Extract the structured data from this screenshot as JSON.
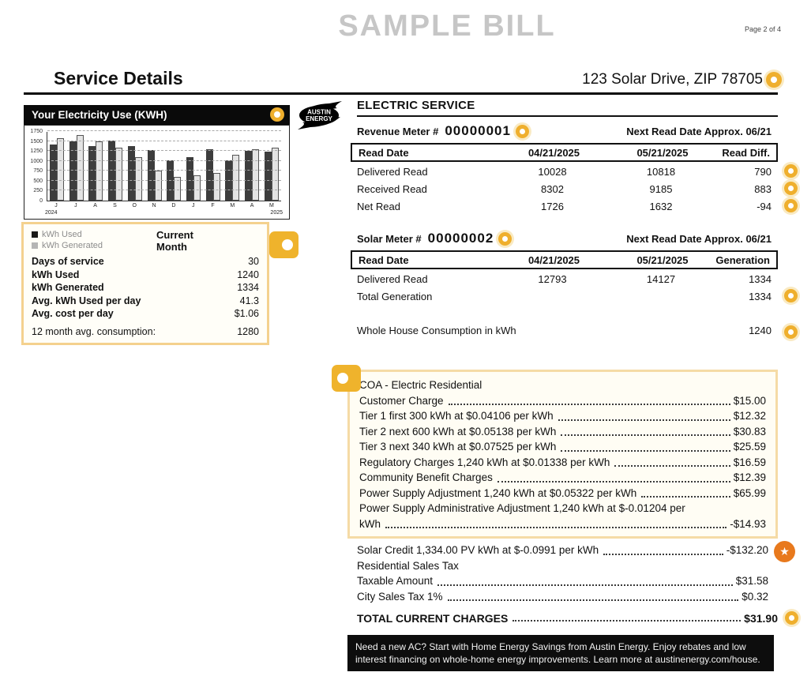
{
  "page": {
    "watermark": "SAMPLE BILL",
    "page_indicator": "Page 2 of 4",
    "section_title": "Service Details",
    "service_address": "123 Solar Drive, ZIP 78705"
  },
  "accents": {
    "marker_gold": "#EFAF2D",
    "star_orange": "#E8791D",
    "highlight_border": "#F5DBA6"
  },
  "chart_data": {
    "type": "bar",
    "title": "Your Electricity Use (KWH)",
    "categories": [
      "J",
      "J",
      "A",
      "S",
      "O",
      "N",
      "D",
      "J",
      "F",
      "M",
      "A",
      "M"
    ],
    "x_start_year": "2024",
    "x_end_year": "2025",
    "series": [
      {
        "name": "kWh Used",
        "color": "#3d3d3d",
        "values": [
          1420,
          1500,
          1380,
          1520,
          1370,
          1280,
          1020,
          1090,
          1300,
          1010,
          1250,
          1240
        ]
      },
      {
        "name": "kWh Generated",
        "color": "#e4e4e4",
        "values": [
          1570,
          1650,
          1500,
          1340,
          1090,
          760,
          590,
          630,
          690,
          1160,
          1290,
          1334
        ]
      }
    ],
    "ylim": [
      0,
      1750
    ],
    "yticks": [
      0,
      250,
      500,
      750,
      1000,
      1250,
      1500,
      1750
    ],
    "grid": true,
    "legend_position": "below-left"
  },
  "legend": {
    "used": "kWh Used",
    "generated": "kWh Generated",
    "current_month": "Current Month"
  },
  "usage_stats": {
    "rows": [
      {
        "label": "Days of service",
        "value": "30"
      },
      {
        "label": "kWh Used",
        "value": "1240"
      },
      {
        "label": "kWh Generated",
        "value": "1334"
      },
      {
        "label": "Avg. kWh Used per day",
        "value": "41.3"
      },
      {
        "label": "Avg. cost per day",
        "value": "$1.06"
      }
    ],
    "footer": {
      "label": "12 month avg. consumption:",
      "value": "1280"
    }
  },
  "electric_service": {
    "heading": "ELECTRIC SERVICE",
    "revenue_meter": {
      "label": "Revenue Meter #",
      "number": "00000001",
      "next_read": "Next Read Date Approx. 06/21",
      "columns": [
        "Read Date",
        "04/21/2025",
        "05/21/2025",
        "Read Diff."
      ],
      "rows": [
        {
          "label": "Delivered Read",
          "c1": "10028",
          "c2": "10818",
          "c3": "790"
        },
        {
          "label": "Received Read",
          "c1": "8302",
          "c2": "9185",
          "c3": "883"
        },
        {
          "label": "Net Read",
          "c1": "1726",
          "c2": "1632",
          "c3": "-94"
        }
      ]
    },
    "solar_meter": {
      "label": "Solar Meter #",
      "number": "00000002",
      "next_read": "Next Read Date Approx. 06/21",
      "columns": [
        "Read Date",
        "04/21/2025",
        "05/21/2025",
        "Generation"
      ],
      "rows": [
        {
          "label": "Delivered Read",
          "c1": "12793",
          "c2": "14127",
          "c3": "1334"
        },
        {
          "label": "Total Generation",
          "c1": "",
          "c2": "",
          "c3": "1334"
        }
      ]
    },
    "whole_house": {
      "label": "Whole House Consumption in kWh",
      "value": "1240"
    }
  },
  "charges": {
    "box_rows": [
      {
        "label": "COA - Electric Residential",
        "amount": ""
      },
      {
        "label": "Customer Charge",
        "amount": "$15.00"
      },
      {
        "label": "Tier 1 first 300 kWh at $0.04106 per kWh",
        "amount": "$12.32"
      },
      {
        "label": "Tier 2 next 600 kWh at $0.05138 per kWh",
        "amount": "$30.83"
      },
      {
        "label": "Tier 3 next 340 kWh at $0.07525 per kWh",
        "amount": "$25.59"
      },
      {
        "label": "Regulatory Charges 1,240 kWh at $0.01338 per kWh",
        "amount": "$16.59"
      },
      {
        "label": "Community Benefit Charges",
        "amount": "$12.39"
      },
      {
        "label": "Power Supply Adjustment 1,240 kWh at $0.05322 per kWh",
        "amount": "$65.99"
      },
      {
        "label": "Power Supply Administrative Adjustment 1,240 kWh at $-0.01204 per",
        "amount": ""
      },
      {
        "label": "kWh",
        "amount": "-$14.93"
      }
    ],
    "after_rows": [
      {
        "label": "Solar Credit 1,334.00 PV kWh at $-0.0991 per kWh",
        "amount": "-$132.20"
      },
      {
        "label": "Residential Sales Tax",
        "amount": ""
      },
      {
        "label": "Taxable Amount",
        "amount": "$31.58"
      },
      {
        "label": "City Sales Tax 1%",
        "amount": "$0.32"
      }
    ],
    "total": {
      "label": "TOTAL CURRENT CHARGES",
      "amount": "$31.90"
    }
  },
  "logo": {
    "line1": "AUSTIN",
    "line2": "ENERGY"
  },
  "promo": {
    "text": "Need a new AC? Start with Home Energy Savings from Austin Energy. Enjoy rebates and low interest financing on whole-home energy improvements. Learn more at austinenergy.com/house."
  }
}
